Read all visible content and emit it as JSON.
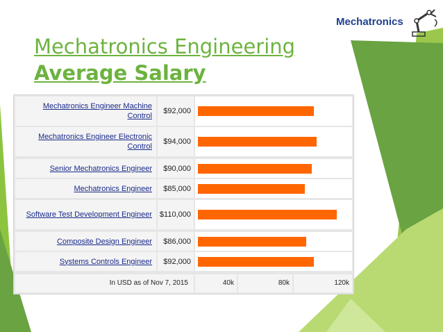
{
  "slide": {
    "title_line1": "Mechatronics Engineering",
    "title_line2": "Average Salary",
    "logo_text": "Mechatronics"
  },
  "colors": {
    "accent_green": "#6cb33f",
    "bar": "#ff6600",
    "link": "#1a2a8a"
  },
  "chart_data": {
    "type": "bar",
    "orientation": "horizontal",
    "categories": [
      "Mechatronics Engineer Machine Control",
      "Mechatronics Engineer Electronic Control",
      "Senior Mechatronics Engineer",
      "Mechatronics Engineer",
      "Software Test Development Engineer",
      "Composite Design Engineer",
      "Systems Controls Engineer"
    ],
    "values": [
      92000,
      94000,
      90000,
      85000,
      110000,
      86000,
      92000
    ],
    "value_labels": [
      "$92,000",
      "$94,000",
      "$90,000",
      "$85,000",
      "$110,000",
      "$86,000",
      "$92,000"
    ],
    "footnote": "In USD as of Nov 7, 2015",
    "x_ticks": [
      "40k",
      "80k",
      "120k"
    ],
    "xlim": [
      0,
      120000
    ],
    "grid": false
  }
}
